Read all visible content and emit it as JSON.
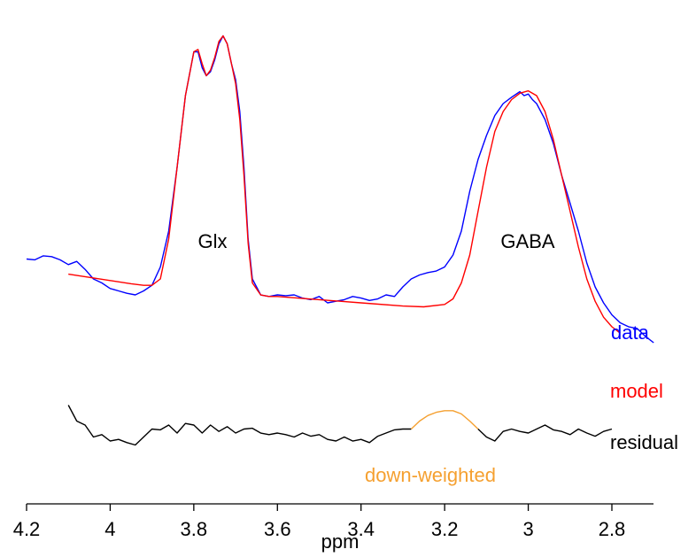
{
  "chart_data": {
    "type": "line",
    "xlabel": "ppm",
    "xlim": [
      4.2,
      2.7
    ],
    "x_reversed": true,
    "ticks": [
      4.2,
      4.0,
      3.8,
      3.6,
      3.4,
      3.2,
      3.0,
      2.8
    ],
    "tick_labels": [
      "4.2",
      "4",
      "3.8",
      "3.6",
      "3.4",
      "3.2",
      "3",
      "2.8"
    ],
    "grid": false,
    "y_axis_shown": false,
    "peak_labels": [
      {
        "text": "Glx",
        "x": 3.74
      },
      {
        "text": "GABA",
        "x": 3.0
      }
    ],
    "legend": {
      "placement": "right",
      "entries": [
        "data",
        "model",
        "residual",
        "down-weighted"
      ]
    },
    "colors": {
      "data": "#0000ff",
      "model": "#ff0000",
      "residual": "#000000",
      "down-weighted": "#f5a030"
    },
    "series": [
      {
        "name": "data",
        "x": [
          4.2,
          4.18,
          4.16,
          4.14,
          4.12,
          4.1,
          4.08,
          4.06,
          4.04,
          4.02,
          4.0,
          3.98,
          3.96,
          3.94,
          3.92,
          3.9,
          3.88,
          3.86,
          3.84,
          3.82,
          3.8,
          3.79,
          3.78,
          3.77,
          3.76,
          3.75,
          3.74,
          3.73,
          3.72,
          3.71,
          3.7,
          3.69,
          3.68,
          3.67,
          3.66,
          3.64,
          3.62,
          3.6,
          3.58,
          3.56,
          3.54,
          3.52,
          3.5,
          3.48,
          3.46,
          3.44,
          3.42,
          3.4,
          3.38,
          3.36,
          3.34,
          3.32,
          3.3,
          3.28,
          3.26,
          3.24,
          3.22,
          3.2,
          3.18,
          3.16,
          3.14,
          3.12,
          3.1,
          3.08,
          3.06,
          3.04,
          3.02,
          3.01,
          3.0,
          2.99,
          2.98,
          2.96,
          2.94,
          2.92,
          2.9,
          2.88,
          2.86,
          2.84,
          2.82,
          2.8,
          2.78,
          2.76,
          2.74,
          2.72,
          2.7
        ],
        "y": [
          1.25,
          1.24,
          1.29,
          1.28,
          1.24,
          1.18,
          1.22,
          1.12,
          1.0,
          0.95,
          0.88,
          0.85,
          0.82,
          0.8,
          0.85,
          0.92,
          1.15,
          1.6,
          2.4,
          3.3,
          3.85,
          3.85,
          3.65,
          3.55,
          3.6,
          3.75,
          3.95,
          4.05,
          3.95,
          3.7,
          3.5,
          3.1,
          2.4,
          1.5,
          1.0,
          0.8,
          0.78,
          0.8,
          0.79,
          0.8,
          0.76,
          0.74,
          0.78,
          0.7,
          0.72,
          0.74,
          0.78,
          0.76,
          0.73,
          0.75,
          0.8,
          0.78,
          0.9,
          1.0,
          1.05,
          1.08,
          1.1,
          1.15,
          1.3,
          1.6,
          2.1,
          2.5,
          2.8,
          3.05,
          3.2,
          3.28,
          3.35,
          3.3,
          3.32,
          3.25,
          3.2,
          3.0,
          2.7,
          2.3,
          1.95,
          1.6,
          1.2,
          0.9,
          0.7,
          0.55,
          0.45,
          0.4,
          0.38,
          0.28,
          0.2
        ]
      },
      {
        "name": "model",
        "x": [
          4.1,
          4.05,
          4.0,
          3.95,
          3.92,
          3.9,
          3.88,
          3.86,
          3.84,
          3.82,
          3.8,
          3.79,
          3.78,
          3.77,
          3.76,
          3.75,
          3.74,
          3.73,
          3.72,
          3.71,
          3.7,
          3.69,
          3.68,
          3.67,
          3.66,
          3.64,
          3.62,
          3.6,
          3.5,
          3.4,
          3.3,
          3.25,
          3.2,
          3.18,
          3.16,
          3.14,
          3.12,
          3.1,
          3.08,
          3.06,
          3.04,
          3.02,
          3.0,
          2.98,
          2.96,
          2.94,
          2.92,
          2.9,
          2.88,
          2.86,
          2.84,
          2.82,
          2.8,
          2.78
        ],
        "y": [
          1.06,
          1.02,
          0.98,
          0.94,
          0.92,
          0.92,
          1.0,
          1.5,
          2.4,
          3.3,
          3.85,
          3.88,
          3.7,
          3.55,
          3.62,
          3.78,
          3.98,
          4.05,
          3.95,
          3.7,
          3.45,
          3.0,
          2.3,
          1.45,
          0.95,
          0.8,
          0.78,
          0.78,
          0.74,
          0.7,
          0.66,
          0.65,
          0.68,
          0.75,
          0.95,
          1.3,
          1.85,
          2.4,
          2.85,
          3.1,
          3.25,
          3.33,
          3.36,
          3.3,
          3.1,
          2.75,
          2.3,
          1.85,
          1.4,
          1.0,
          0.72,
          0.52,
          0.4,
          0.32
        ]
      },
      {
        "name": "residual",
        "x": [
          4.1,
          4.08,
          4.06,
          4.04,
          4.02,
          4.0,
          3.98,
          3.96,
          3.94,
          3.92,
          3.9,
          3.88,
          3.86,
          3.84,
          3.82,
          3.8,
          3.78,
          3.76,
          3.74,
          3.72,
          3.7,
          3.68,
          3.66,
          3.64,
          3.62,
          3.6,
          3.58,
          3.56,
          3.54,
          3.52,
          3.5,
          3.48,
          3.46,
          3.44,
          3.42,
          3.4,
          3.38,
          3.36,
          3.34,
          3.32,
          3.3,
          3.28
        ],
        "y": [
          0.25,
          0.05,
          0.0,
          -0.15,
          -0.12,
          -0.2,
          -0.18,
          -0.22,
          -0.25,
          -0.15,
          -0.05,
          -0.06,
          0.0,
          -0.1,
          0.02,
          0.0,
          -0.1,
          0.0,
          -0.08,
          -0.02,
          -0.1,
          -0.05,
          -0.04,
          -0.1,
          -0.12,
          -0.1,
          -0.12,
          -0.15,
          -0.1,
          -0.14,
          -0.12,
          -0.18,
          -0.2,
          -0.15,
          -0.2,
          -0.18,
          -0.22,
          -0.14,
          -0.1,
          -0.06,
          -0.05,
          -0.05
        ]
      },
      {
        "name": "down-weighted",
        "x": [
          3.28,
          3.26,
          3.24,
          3.22,
          3.2,
          3.18,
          3.16,
          3.14,
          3.12
        ],
        "y": [
          -0.05,
          0.05,
          0.12,
          0.16,
          0.18,
          0.18,
          0.14,
          0.05,
          -0.05
        ]
      },
      {
        "name": "residual",
        "x": [
          3.12,
          3.1,
          3.08,
          3.06,
          3.04,
          3.02,
          3.0,
          2.98,
          2.96,
          2.94,
          2.92,
          2.9,
          2.88,
          2.86,
          2.84,
          2.82,
          2.8
        ],
        "y": [
          -0.05,
          -0.15,
          -0.2,
          -0.08,
          -0.05,
          -0.08,
          -0.1,
          -0.05,
          0.0,
          -0.06,
          -0.08,
          -0.12,
          -0.05,
          -0.1,
          -0.14,
          -0.08,
          -0.05
        ]
      }
    ]
  }
}
